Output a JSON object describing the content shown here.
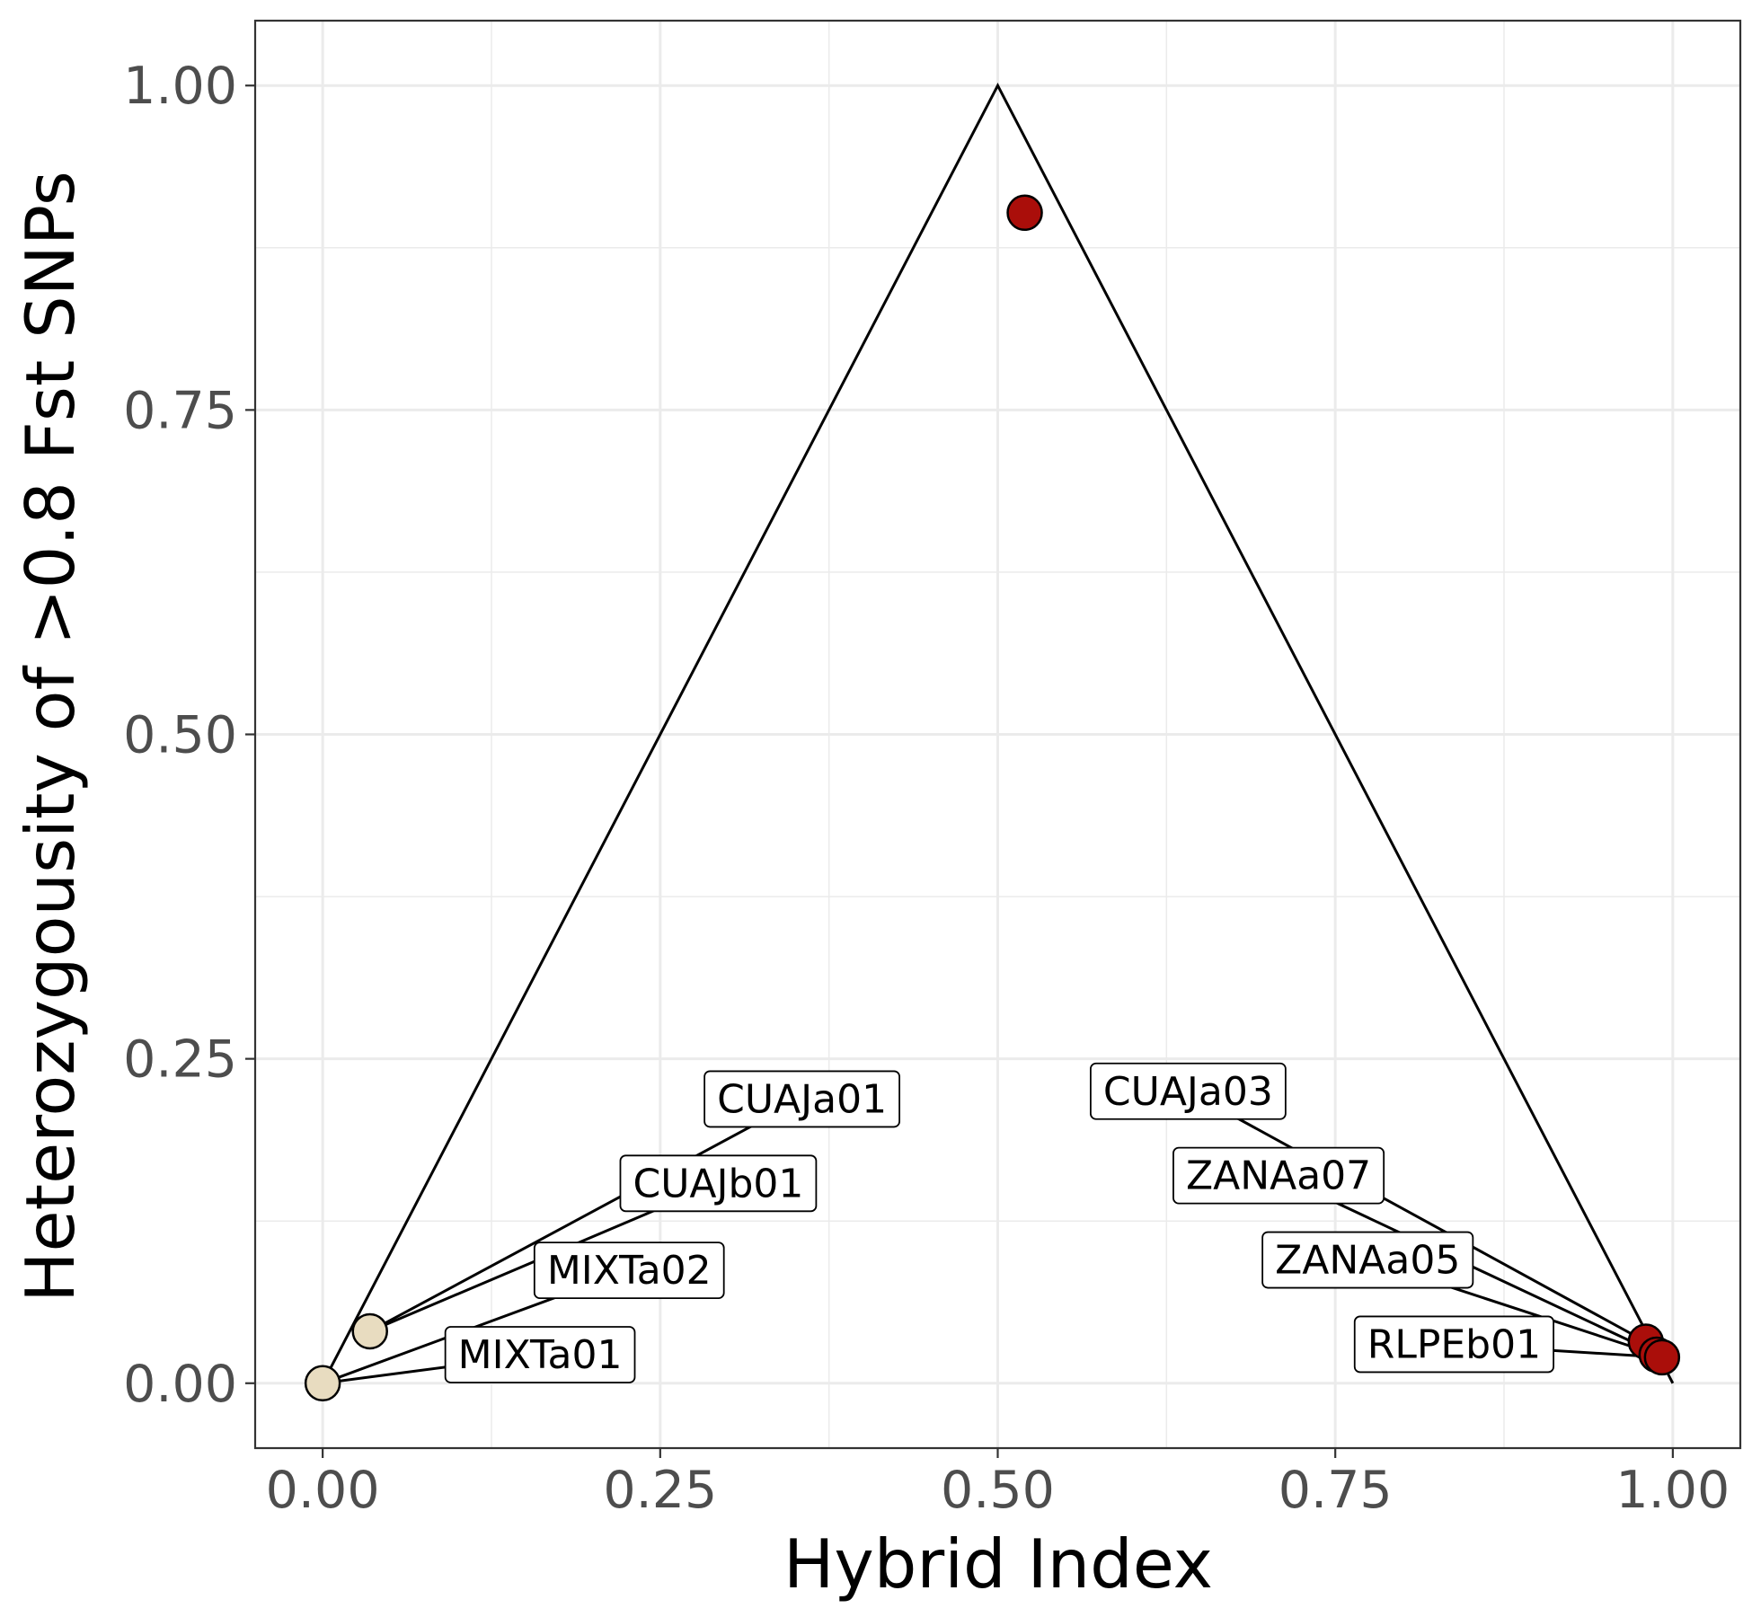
{
  "chart_data": {
    "type": "scatter",
    "title": "",
    "xlabel": "Hybrid Index",
    "ylabel": "Heterozygousity of >0.8 Fst SNPs",
    "xlim": [
      -0.05,
      1.05
    ],
    "ylim": [
      -0.05,
      1.05
    ],
    "x_ticks": [
      0,
      0.25,
      0.5,
      0.75,
      1
    ],
    "x_tick_labels": [
      "0.00",
      "0.25",
      "0.50",
      "0.75",
      "1.00"
    ],
    "y_ticks": [
      0,
      0.25,
      0.5,
      0.75,
      1
    ],
    "y_tick_labels": [
      "0.00",
      "0.25",
      "0.50",
      "0.75",
      "1.00"
    ],
    "grid": true,
    "reference_triangle": [
      [
        0,
        0
      ],
      [
        0.5,
        1
      ],
      [
        1,
        0
      ]
    ],
    "colors": {
      "parental_a": "#e8dcc0",
      "parental_b": "#aa0e0a",
      "line": "#000000"
    },
    "points": [
      {
        "x": 0.0,
        "y": 0.0,
        "group": "parental_a"
      },
      {
        "x": 0.035,
        "y": 0.04,
        "group": "parental_a"
      },
      {
        "x": 0.52,
        "y": 0.902,
        "group": "parental_b"
      },
      {
        "x": 0.98,
        "y": 0.032,
        "group": "parental_b"
      },
      {
        "x": 0.988,
        "y": 0.022,
        "group": "parental_b"
      },
      {
        "x": 0.992,
        "y": 0.02,
        "group": "parental_b"
      }
    ],
    "labels": [
      {
        "text": "CUAJa01",
        "point_x": 0.035,
        "point_y": 0.04,
        "label_x": 0.355,
        "label_y": 0.219
      },
      {
        "text": "CUAJb01",
        "point_x": 0.035,
        "point_y": 0.04,
        "label_x": 0.293,
        "label_y": 0.154
      },
      {
        "text": "MIXTa02",
        "point_x": 0.0,
        "point_y": 0.0,
        "label_x": 0.227,
        "label_y": 0.087
      },
      {
        "text": "MIXTa01",
        "point_x": 0.0,
        "point_y": 0.0,
        "label_x": 0.161,
        "label_y": 0.022
      },
      {
        "text": "CUAJa03",
        "point_x": 0.98,
        "point_y": 0.032,
        "label_x": 0.641,
        "label_y": 0.225
      },
      {
        "text": "ZANAa07",
        "point_x": 0.986,
        "point_y": 0.024,
        "label_x": 0.708,
        "label_y": 0.16
      },
      {
        "text": "ZANAa05",
        "point_x": 0.988,
        "point_y": 0.022,
        "label_x": 0.774,
        "label_y": 0.095
      },
      {
        "text": "RLPEb01",
        "point_x": 0.992,
        "point_y": 0.02,
        "label_x": 0.838,
        "label_y": 0.03
      }
    ]
  }
}
